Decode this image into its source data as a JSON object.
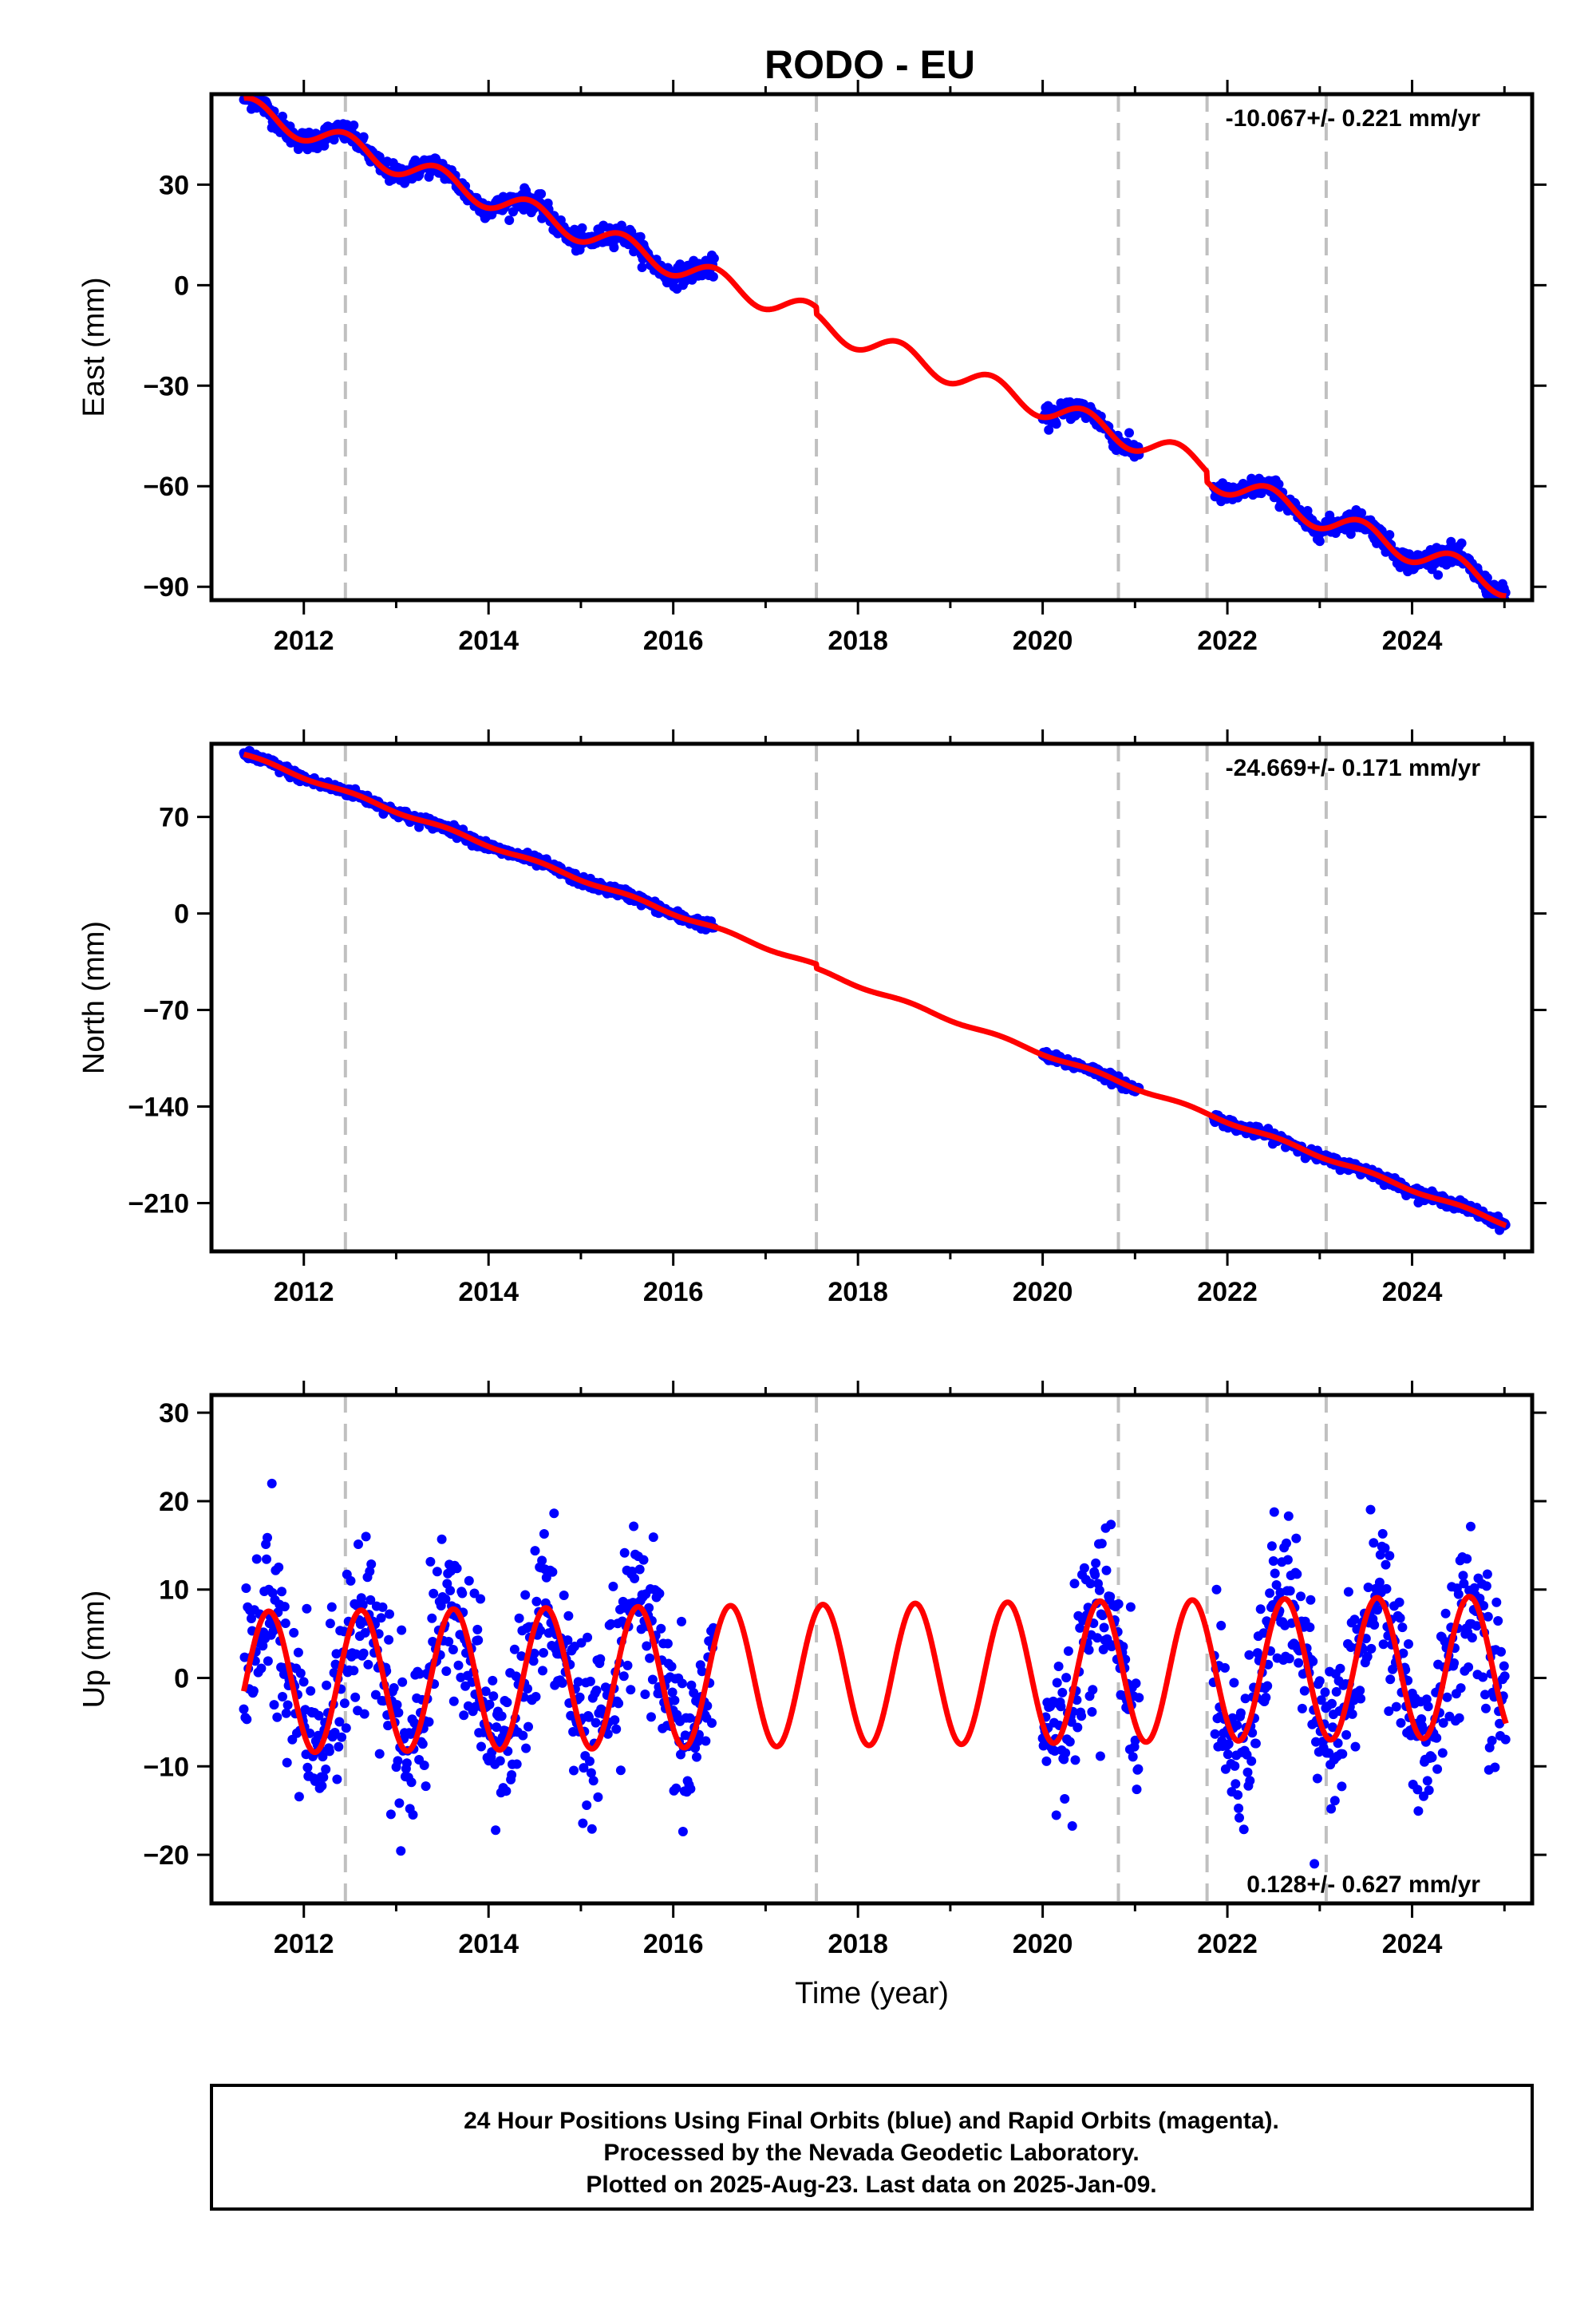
{
  "title": "RODO - EU",
  "colors": {
    "final_orbits": "#0000ff",
    "model": "#ff0000",
    "event_line": "#c0c0c0",
    "frame": "#000000"
  },
  "footer": {
    "lines": [
      "24 Hour Positions Using Final Orbits (blue) and Rapid Orbits (magenta).",
      "Processed by the Nevada Geodetic Laboratory.",
      "Plotted on 2025-Aug-23. Last data on 2025-Jan-09."
    ]
  },
  "chart_data": [
    {
      "type": "scatter",
      "component": "East",
      "ylabel": "East (mm)",
      "xlabel": "",
      "xlim": [
        2011.0,
        2025.3
      ],
      "ylim": [
        -94,
        57
      ],
      "xticks": [
        2012,
        2014,
        2016,
        2018,
        2020,
        2022,
        2024
      ],
      "yticks": [
        30,
        0,
        -30,
        -60,
        -90
      ],
      "ytick_labels": [
        "30",
        "0",
        "−30",
        "−60",
        "−90"
      ],
      "rate_text": "-10.067+/- 0.221 mm/yr",
      "rate_position": "top-right",
      "event_lines": [
        2012.45,
        2017.55,
        2020.82,
        2021.78,
        2023.07
      ],
      "data_periods": [
        [
          2011.35,
          2016.45
        ],
        [
          2020.0,
          2021.05
        ],
        [
          2021.85,
          2025.02
        ]
      ],
      "model": {
        "t0": 2011.35,
        "y0": 53,
        "rate": -10.067,
        "annual_amplitude": 3.5,
        "annual_phase": 0.2,
        "offsets": [
          {
            "at": 2017.55,
            "value": -2
          },
          {
            "at": 2021.78,
            "value": -3
          }
        ]
      },
      "scatter_sigma": 1.5,
      "series": [
        {
          "name": "Final Orbits",
          "style": "points"
        },
        {
          "name": "model",
          "style": "line"
        }
      ]
    },
    {
      "type": "scatter",
      "component": "North",
      "ylabel": "North (mm)",
      "xlabel": "",
      "xlim": [
        2011.0,
        2025.3
      ],
      "ylim": [
        -245,
        123
      ],
      "xticks": [
        2012,
        2014,
        2016,
        2018,
        2020,
        2022,
        2024
      ],
      "yticks": [
        70,
        0,
        -70,
        -140,
        -210
      ],
      "ytick_labels": [
        "70",
        "0",
        "−70",
        "−140",
        "−210"
      ],
      "rate_text": "-24.669+/- 0.171 mm/yr",
      "rate_position": "top-right",
      "event_lines": [
        2012.45,
        2017.55,
        2020.82,
        2021.78,
        2023.07
      ],
      "data_periods": [
        [
          2011.35,
          2016.45
        ],
        [
          2020.0,
          2021.05
        ],
        [
          2021.85,
          2025.02
        ]
      ],
      "model": {
        "t0": 2011.35,
        "y0": 115,
        "rate": -24.669,
        "annual_amplitude": 1.2,
        "annual_phase": 0.3,
        "offsets": [
          {
            "at": 2017.55,
            "value": -3
          }
        ]
      },
      "scatter_sigma": 1.8,
      "series": [
        {
          "name": "Final Orbits",
          "style": "points"
        },
        {
          "name": "model",
          "style": "line"
        }
      ]
    },
    {
      "type": "scatter",
      "component": "Up",
      "ylabel": "Up (mm)",
      "xlabel": "Time (year)",
      "xlim": [
        2011.0,
        2025.3
      ],
      "ylim": [
        -25.5,
        32
      ],
      "xticks": [
        2012,
        2014,
        2016,
        2018,
        2020,
        2022,
        2024
      ],
      "yticks": [
        30,
        20,
        10,
        0,
        -10,
        -20
      ],
      "ytick_labels": [
        "30",
        "20",
        "10",
        "0",
        "−10",
        "−20"
      ],
      "rate_text": "0.128+/- 0.627 mm/yr",
      "rate_position": "bottom-right",
      "event_lines": [
        2012.45,
        2017.55,
        2020.82,
        2021.78,
        2023.07
      ],
      "data_periods": [
        [
          2011.35,
          2016.45
        ],
        [
          2020.0,
          2021.05
        ],
        [
          2021.85,
          2025.02
        ]
      ],
      "model": {
        "t0": 2011.35,
        "y0": -0.5,
        "rate": 0.128,
        "annual_amplitude": 8.0,
        "annual_phase": 0.37,
        "offsets": []
      },
      "scatter_sigma": 4.5,
      "series": [
        {
          "name": "Final Orbits",
          "style": "points"
        },
        {
          "name": "model",
          "style": "line"
        }
      ]
    }
  ]
}
